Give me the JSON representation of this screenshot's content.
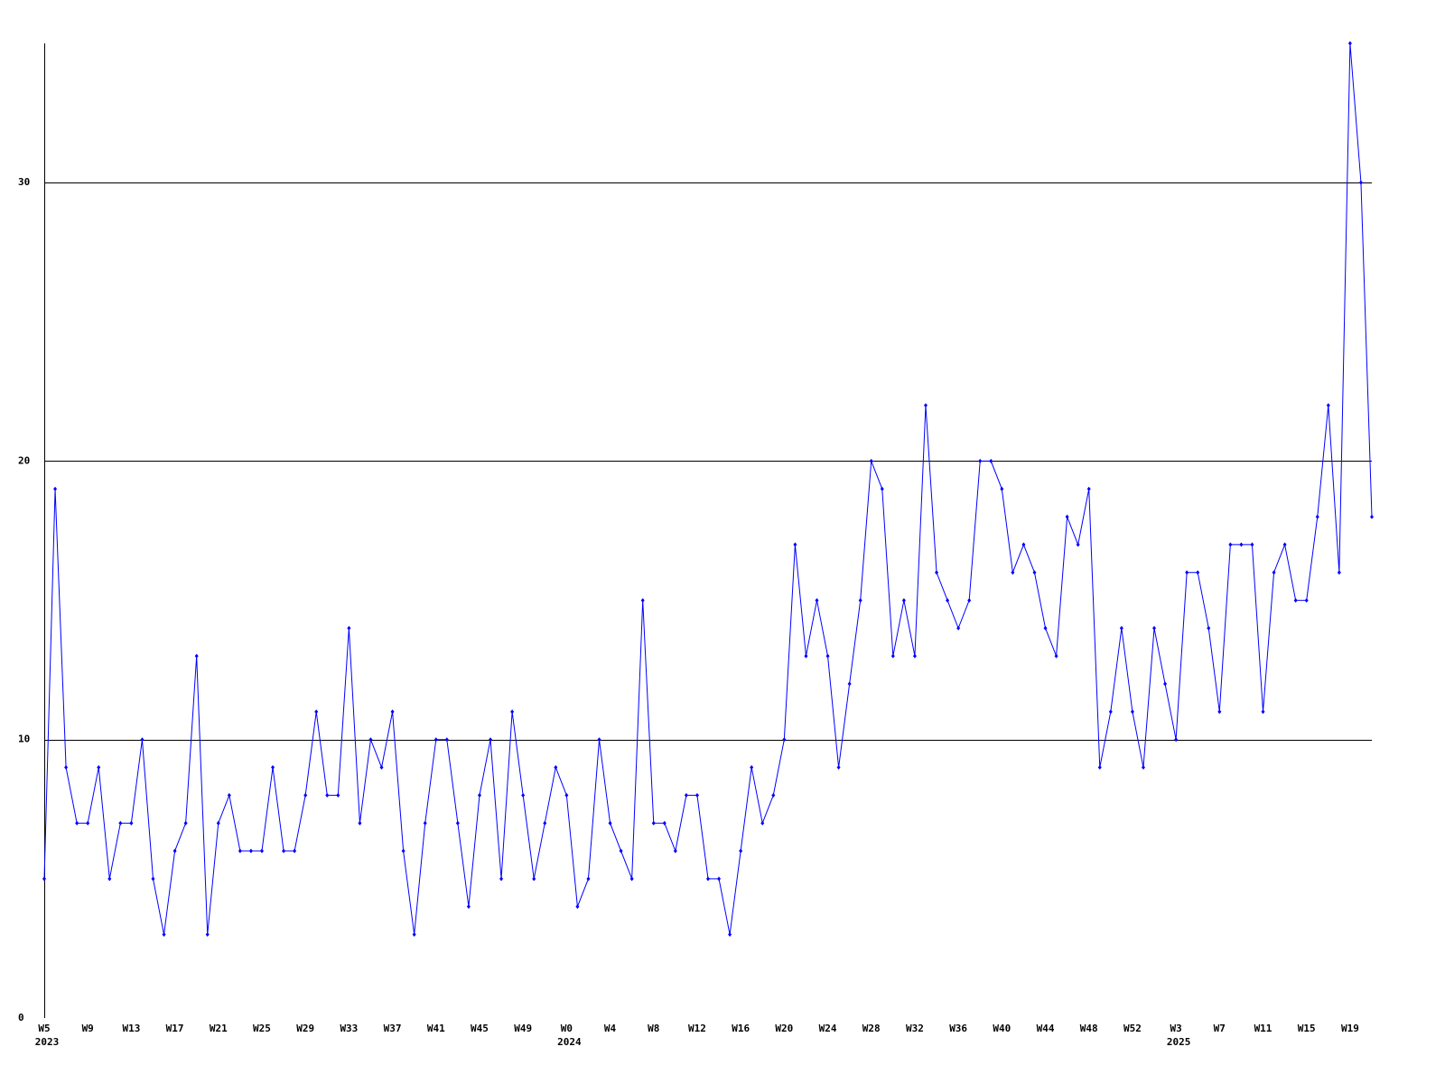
{
  "chart_data": {
    "type": "line",
    "categories": [
      "W5",
      null,
      null,
      null,
      "W9",
      null,
      null,
      null,
      "W13",
      null,
      null,
      null,
      "W17",
      null,
      null,
      null,
      "W21",
      null,
      null,
      null,
      "W25",
      null,
      null,
      null,
      "W29",
      null,
      null,
      null,
      "W33",
      null,
      null,
      null,
      "W37",
      null,
      null,
      null,
      "W41",
      null,
      null,
      null,
      "W45",
      null,
      null,
      null,
      "W49",
      null,
      null,
      null,
      "W0",
      null,
      null,
      null,
      "W4",
      null,
      null,
      null,
      "W8",
      null,
      null,
      null,
      "W12",
      null,
      null,
      null,
      "W16",
      null,
      null,
      null,
      "W20",
      null,
      null,
      null,
      "W24",
      null,
      null,
      null,
      "W28",
      null,
      null,
      null,
      "W32",
      null,
      null,
      null,
      "W36",
      null,
      null,
      null,
      "W40",
      null,
      null,
      null,
      "W44",
      null,
      null,
      null,
      "W48",
      null,
      null,
      null,
      "W52",
      null,
      null,
      null,
      "W3",
      null,
      null,
      null,
      "W7",
      null,
      null,
      null,
      "W11",
      null,
      null,
      null,
      "W15",
      null,
      null,
      null,
      "W19",
      null,
      null
    ],
    "years": [
      "2023",
      null,
      null,
      null,
      null,
      null,
      null,
      null,
      null,
      null,
      null,
      null,
      null,
      null,
      null,
      null,
      null,
      null,
      null,
      null,
      null,
      null,
      null,
      null,
      null,
      null,
      null,
      null,
      null,
      null,
      null,
      null,
      null,
      null,
      null,
      null,
      null,
      null,
      null,
      null,
      null,
      null,
      null,
      null,
      null,
      null,
      null,
      null,
      "2024",
      null,
      null,
      null,
      null,
      null,
      null,
      null,
      null,
      null,
      null,
      null,
      null,
      null,
      null,
      null,
      null,
      null,
      null,
      null,
      null,
      null,
      null,
      null,
      null,
      null,
      null,
      null,
      null,
      null,
      null,
      null,
      null,
      null,
      null,
      null,
      null,
      null,
      null,
      null,
      null,
      null,
      null,
      null,
      null,
      null,
      null,
      null,
      null,
      null,
      null,
      null,
      null,
      null,
      null,
      null,
      "2025",
      null,
      null,
      null,
      null,
      null,
      null,
      null,
      null,
      null,
      null,
      null,
      null,
      null,
      null,
      null,
      null,
      null,
      null
    ],
    "series": [
      {
        "color": "#0000ff",
        "values": [
          5,
          19,
          9,
          7,
          7,
          9,
          5,
          7,
          7,
          10,
          5,
          3,
          6,
          7,
          13,
          3,
          7,
          8,
          6,
          6,
          6,
          9,
          6,
          6,
          8,
          11,
          8,
          8,
          14,
          7,
          10,
          9,
          11,
          6,
          3,
          7,
          10,
          10,
          7,
          4,
          8,
          10,
          5,
          11,
          8,
          5,
          7,
          9,
          8,
          4,
          5,
          10,
          7,
          6,
          5,
          15,
          7,
          7,
          6,
          8,
          8,
          5,
          5,
          3,
          6,
          9,
          7,
          8,
          10,
          17,
          13,
          15,
          13,
          9,
          12,
          15,
          20,
          19,
          13,
          15,
          13,
          22,
          16,
          15,
          14,
          15,
          20,
          20,
          19,
          16,
          17,
          16,
          14,
          13,
          18,
          17,
          19,
          9,
          11,
          14,
          11,
          9,
          14,
          12,
          10,
          16,
          16,
          14,
          11,
          17,
          17,
          17,
          11,
          16,
          17,
          15,
          15,
          18,
          22,
          16,
          35,
          30,
          18
        ]
      }
    ],
    "ylim": [
      0,
      35
    ],
    "yticks": [
      0,
      10,
      20,
      30
    ],
    "grid": true
  }
}
